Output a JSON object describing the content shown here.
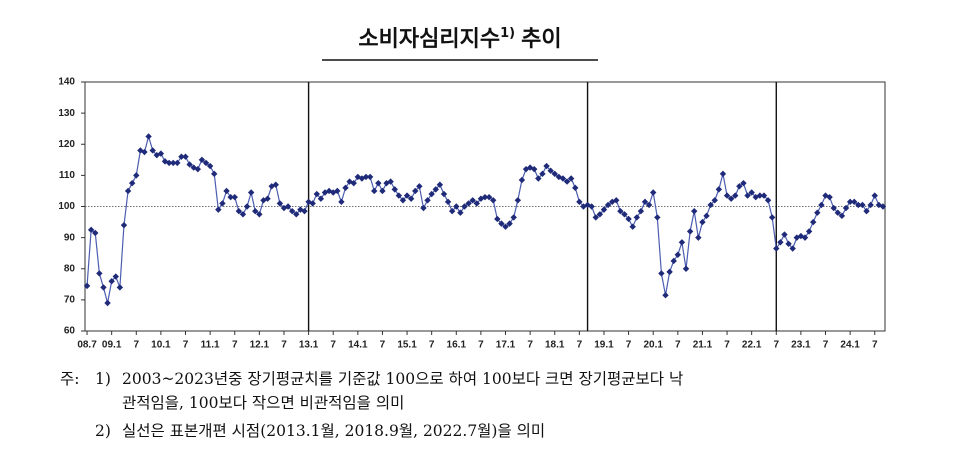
{
  "chart_data": {
    "type": "line",
    "title": "소비자심리지수",
    "title_note": "1)",
    "title_suffix": "추이",
    "categories": [
      "08.7",
      null,
      null,
      null,
      null,
      null,
      "09.1",
      null,
      null,
      null,
      null,
      null,
      "7",
      null,
      null,
      null,
      null,
      null,
      "10.1",
      null,
      null,
      null,
      null,
      null,
      "7",
      null,
      null,
      null,
      null,
      null,
      "11.1",
      null,
      null,
      null,
      null,
      null,
      "7",
      null,
      null,
      null,
      null,
      null,
      "12.1",
      null,
      null,
      null,
      null,
      null,
      "7",
      null,
      null,
      null,
      null,
      null,
      "13.1",
      null,
      null,
      null,
      null,
      null,
      "7",
      null,
      null,
      null,
      null,
      null,
      "14.1",
      null,
      null,
      null,
      null,
      null,
      "7",
      null,
      null,
      null,
      null,
      null,
      "15.1",
      null,
      null,
      null,
      null,
      null,
      "7",
      null,
      null,
      null,
      null,
      null,
      "16.1",
      null,
      null,
      null,
      null,
      null,
      "7",
      null,
      null,
      null,
      null,
      null,
      "17.1",
      null,
      null,
      null,
      null,
      null,
      "7",
      null,
      null,
      null,
      null,
      null,
      "18.1",
      null,
      null,
      null,
      null,
      null,
      "7",
      null,
      null,
      null,
      null,
      null,
      "19.1",
      null,
      null,
      null,
      null,
      null,
      "7",
      null,
      null,
      null,
      null,
      null,
      "20.1",
      null,
      null,
      null,
      null,
      null,
      "7",
      null,
      null,
      null,
      null,
      null,
      "21.1",
      null,
      null,
      null,
      null,
      null,
      "7",
      null,
      null,
      null,
      null,
      null,
      "22.1",
      null,
      null,
      null,
      null,
      null,
      "7",
      null,
      null,
      null,
      null,
      null,
      "23.1",
      null,
      null,
      null,
      null,
      null,
      "7",
      null,
      null,
      null,
      null,
      null,
      "24.1",
      null,
      null,
      null,
      null,
      null,
      "7",
      null,
      null
    ],
    "values": [
      74.5,
      92.5,
      91.5,
      78.5,
      74,
      69,
      76,
      77.5,
      74,
      94,
      105,
      107.5,
      110,
      118,
      117.5,
      122.5,
      118,
      116.5,
      117,
      114.5,
      114,
      114,
      114,
      116,
      116,
      113.5,
      112.5,
      112,
      115,
      114,
      113,
      110.5,
      99,
      101,
      105,
      103,
      103,
      98.5,
      97.5,
      100,
      104.5,
      98.5,
      97.5,
      102,
      102.5,
      106.5,
      107,
      101,
      99.5,
      100,
      98.5,
      97.5,
      99,
      98.5,
      101.5,
      101,
      104,
      102.5,
      104.5,
      105,
      104.5,
      105,
      101.5,
      106,
      108,
      107.5,
      109.5,
      109,
      109.5,
      109.5,
      105,
      107.5,
      105,
      107.5,
      108,
      105.5,
      103.5,
      102,
      103.5,
      102.5,
      105,
      106.5,
      99.5,
      102,
      104,
      105.5,
      107,
      104,
      101.5,
      98.5,
      100,
      98,
      100,
      101,
      102,
      101,
      102.5,
      103,
      103,
      102,
      96,
      94.5,
      93.5,
      94.5,
      96.5,
      102,
      108.5,
      112,
      112.5,
      112,
      109,
      110.5,
      113,
      111.5,
      110.5,
      109.5,
      109,
      108,
      109,
      106,
      101.5,
      100,
      100.5,
      100,
      96.5,
      97.5,
      99,
      100.5,
      101.5,
      102,
      98.5,
      97.5,
      96,
      93.5,
      96.5,
      98.5,
      101.5,
      100.5,
      104.5,
      96.5,
      78.5,
      71.5,
      79,
      82.5,
      84.5,
      88.5,
      80,
      92,
      98.5,
      90,
      95,
      97,
      100.5,
      102,
      105.5,
      110.5,
      103.5,
      102.5,
      103.5,
      106.5,
      107.5,
      103.5,
      104.5,
      103,
      103.5,
      103.5,
      102,
      96.5,
      86.5,
      88.5,
      91,
      88,
      86.5,
      90,
      90.5,
      90,
      92,
      95,
      98,
      100.5,
      103.5,
      103,
      99.5,
      98,
      97,
      99.5,
      101.5,
      101.5,
      100.5,
      100.5,
      98.5,
      100.5,
      103.5,
      100.5,
      100
    ],
    "color": "#1f2a78",
    "line_color": "#4b5db0",
    "ylim": [
      60,
      140
    ],
    "yticks": [
      60,
      70,
      80,
      90,
      100,
      110,
      120,
      130,
      140
    ],
    "reference_line": 100,
    "vlines": [
      54,
      122,
      168
    ]
  },
  "notes": {
    "label": "주:",
    "items": [
      {
        "marker": "1)",
        "lines": [
          "2003~2023년중 장기평균치를 기준값 100으로 하여 100보다 크면 장기평균보다 낙",
          "관적임을, 100보다 작으면 비관적임을 의미"
        ]
      },
      {
        "marker": "2)",
        "lines": [
          "실선은 표본개편 시점(2013.1월, 2018.9월, 2022.7월)을 의미"
        ]
      }
    ]
  }
}
